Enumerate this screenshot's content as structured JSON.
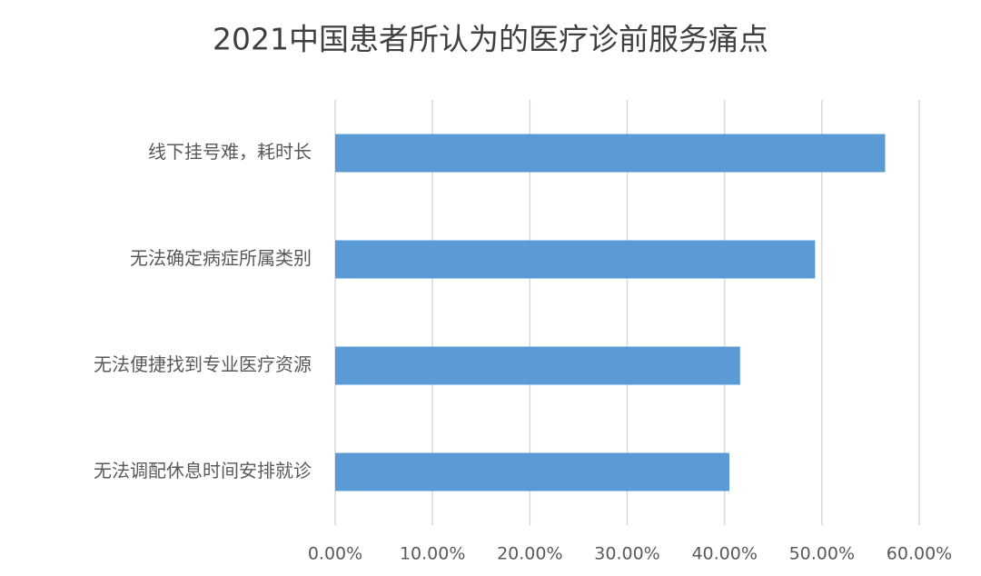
{
  "chart_data": {
    "type": "bar",
    "orientation": "horizontal",
    "title": "2021中国患者所认为的医疗诊前服务痛点",
    "categories": [
      "线下挂号难，耗时长",
      "无法确定病症所属类别",
      "无法便捷找到专业医疗资源",
      "无法调配休息时间安排就诊"
    ],
    "values": [
      56.5,
      49.3,
      41.6,
      40.5
    ],
    "color": "#5b9bd5",
    "xlim": [
      0,
      60
    ],
    "xticks": [
      {
        "value": 0,
        "label": "0.00%"
      },
      {
        "value": 10,
        "label": "10.00%"
      },
      {
        "value": 20,
        "label": "20.00%"
      },
      {
        "value": 30,
        "label": "30.00%"
      },
      {
        "value": 40,
        "label": "40.00%"
      },
      {
        "value": 50,
        "label": "50.00%"
      },
      {
        "value": 60,
        "label": "60.00%"
      }
    ],
    "grid": true
  }
}
